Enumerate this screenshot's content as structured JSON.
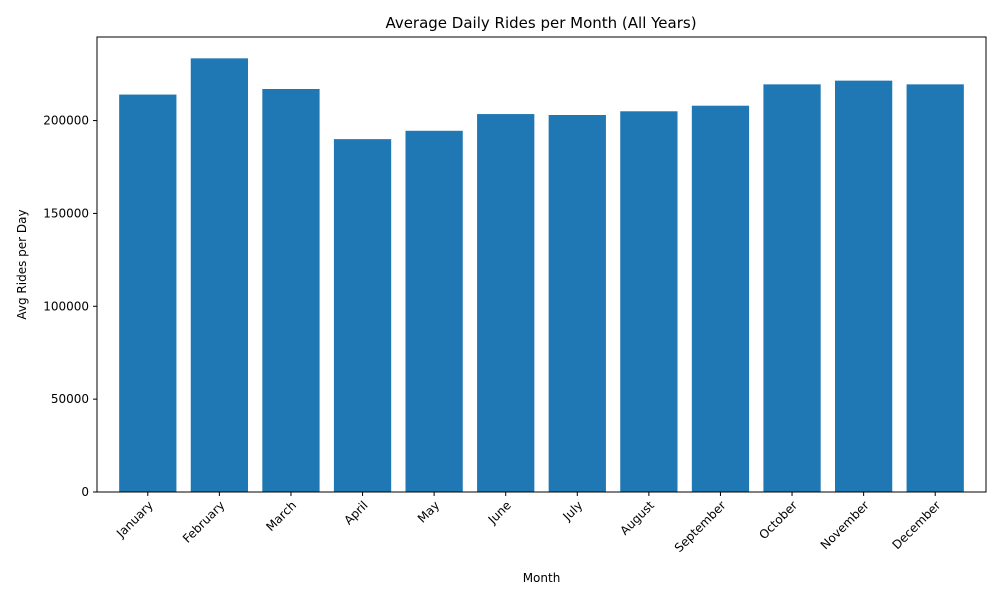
{
  "chart_data": {
    "type": "bar",
    "title": "Average Daily Rides per Month (All Years)",
    "xlabel": "Month",
    "ylabel": "Avg Rides per Day",
    "categories": [
      "January",
      "February",
      "March",
      "April",
      "May",
      "June",
      "July",
      "August",
      "September",
      "October",
      "November",
      "December"
    ],
    "values": [
      214000,
      233500,
      217000,
      190000,
      194500,
      203500,
      203000,
      205000,
      208000,
      219500,
      221500,
      219500
    ],
    "ylim": [
      0,
      245000
    ],
    "yticks": [
      0,
      50000,
      100000,
      150000,
      200000
    ],
    "ytick_labels": [
      "0",
      "50000",
      "100000",
      "150000",
      "200000"
    ],
    "bar_color": "#1f77b4",
    "grid": false,
    "xtick_rotation_deg": 45
  }
}
